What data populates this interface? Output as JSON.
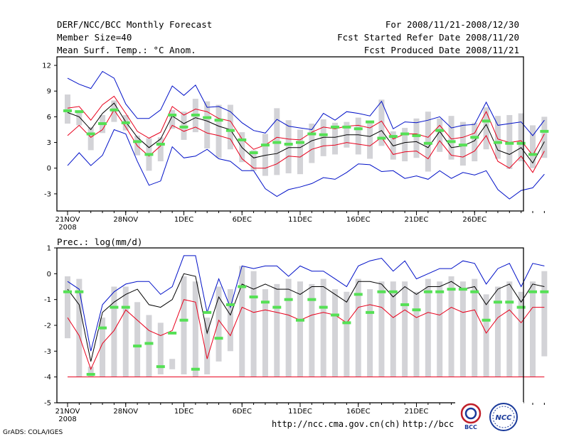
{
  "header": {
    "title": "DERF/NCC/BCC Monthly Forecast",
    "member_size": "Member Size=40",
    "variable": "Mean Surf. Temp.: °C Anom.",
    "period": "For 2008/11/21-2008/12/30",
    "started": "Fcst Started Refer Date 2008/11/20",
    "produced": "Fcst Produced Date 2008/11/21"
  },
  "footer": {
    "grads": "GrADS: COLA/IGES",
    "link1": "http://ncc.cma.gov.cn(ch)",
    "link2": "http://bcc.",
    "logo_text1": "BCC",
    "logo_text2": "NCC"
  },
  "colors": {
    "box": "#d3d3d7",
    "median": "#55e055",
    "mean": "#000000",
    "spread": "#e8001c",
    "extreme": "#0010c8"
  },
  "chart_data": [
    {
      "type": "box",
      "title": "Mean Surf. Temp.: °C Anom.",
      "ylim": [
        -5,
        13
      ],
      "yticks": [
        12,
        9,
        6,
        3,
        0,
        -3
      ],
      "xticks": [
        {
          "day": 0,
          "label": "21NOV"
        },
        {
          "day": 5,
          "label": "28NOV"
        },
        {
          "day": 10,
          "label": "1DEC"
        },
        {
          "day": 15,
          "label": "6DEC"
        },
        {
          "day": 20,
          "label": "11DEC"
        },
        {
          "day": 25,
          "label": "16DEC"
        },
        {
          "day": 30,
          "label": "21DEC"
        },
        {
          "day": 35,
          "label": "26DEC"
        }
      ],
      "year_label": "2008",
      "days": 40,
      "series": [
        {
          "name": "max",
          "values": [
            10.5,
            9.8,
            9.3,
            11.3,
            10.5,
            7.5,
            5.8,
            5.8,
            6.8,
            9.6,
            8.5,
            9.7,
            7.1,
            7.2,
            6.6,
            5.3,
            4.4,
            4.1,
            5.7,
            4.9,
            4.7,
            4.5,
            6.4,
            5.6,
            6.6,
            6.4,
            6.1,
            7.8,
            4.6,
            5.4,
            5.3,
            5.6,
            6.0,
            4.7,
            5.0,
            5.1,
            7.7,
            5.0,
            5.2,
            5.4,
            3.8,
            5.6
          ]
        },
        {
          "name": "mean_plus_sd",
          "values": [
            7.0,
            7.2,
            5.6,
            7.4,
            8.4,
            6.4,
            4.3,
            3.5,
            4.2,
            7.2,
            6.2,
            6.9,
            6.6,
            5.8,
            5.5,
            3.4,
            2.2,
            2.7,
            3.6,
            3.4,
            3.3,
            4.2,
            4.8,
            4.6,
            4.9,
            5.0,
            4.7,
            5.5,
            3.4,
            4.0,
            4.0,
            3.6,
            5.0,
            3.4,
            3.6,
            4.1,
            6.6,
            3.4,
            3.0,
            3.2,
            1.5,
            4.0
          ]
        },
        {
          "name": "mean",
          "values": [
            6.5,
            6.0,
            4.5,
            6.4,
            7.6,
            5.4,
            3.6,
            2.4,
            3.4,
            6.1,
            5.2,
            5.9,
            5.5,
            4.9,
            4.5,
            2.4,
            1.2,
            1.5,
            1.7,
            2.4,
            2.4,
            3.2,
            3.6,
            3.6,
            3.9,
            3.9,
            3.7,
            4.4,
            2.6,
            3.0,
            3.1,
            2.4,
            4.3,
            2.4,
            2.6,
            3.2,
            5.1,
            2.1,
            1.6,
            2.4,
            0.6,
            3.1
          ]
        },
        {
          "name": "mean_minus_sd",
          "values": [
            3.8,
            5.0,
            3.6,
            4.5,
            6.8,
            4.8,
            2.6,
            1.4,
            2.6,
            5.0,
            4.3,
            4.8,
            4.1,
            3.8,
            3.4,
            1.1,
            0.0,
            0.0,
            0.5,
            1.4,
            1.3,
            2.2,
            2.6,
            2.7,
            3.0,
            2.8,
            2.6,
            3.6,
            1.6,
            1.9,
            2.0,
            1.1,
            3.2,
            1.5,
            1.3,
            2.0,
            3.8,
            0.8,
            0.0,
            1.4,
            -0.5,
            2.0
          ]
        },
        {
          "name": "min",
          "values": [
            0.3,
            1.8,
            0.3,
            1.5,
            4.5,
            4.0,
            0.8,
            -2.0,
            -1.5,
            2.5,
            1.2,
            1.4,
            2.2,
            1.1,
            0.8,
            -0.3,
            -0.3,
            -2.4,
            -3.3,
            -2.5,
            -2.2,
            -1.8,
            -1.1,
            -1.3,
            -0.5,
            0.5,
            0.4,
            -0.4,
            -0.3,
            -1.2,
            -0.9,
            -1.3,
            -0.3,
            -1.2,
            -0.5,
            -0.8,
            -0.3,
            -2.5,
            -3.6,
            -2.6,
            -2.3,
            -0.7
          ]
        },
        {
          "name": "box_top",
          "values": [
            8.6,
            6.5,
            4.8,
            6.2,
            7.9,
            6.2,
            3.8,
            3.5,
            3.6,
            6.8,
            6.6,
            8.1,
            7.8,
            7.4,
            7.4,
            4.2,
            2.1,
            4.0,
            7.0,
            5.6,
            4.5,
            5.2,
            5.7,
            5.3,
            5.4,
            5.9,
            5.5,
            8.0,
            4.3,
            4.7,
            5.8,
            6.6,
            5.8,
            6.1,
            5.4,
            5.3,
            7.1,
            6.1,
            6.2,
            6.4,
            5.0,
            6.0
          ]
        },
        {
          "name": "box_bottom",
          "values": [
            5.2,
            5.0,
            2.1,
            4.1,
            5.4,
            4.4,
            1.5,
            -0.3,
            0.8,
            4.6,
            3.3,
            4.2,
            2.3,
            1.2,
            2.2,
            0.7,
            -0.3,
            -0.9,
            -0.8,
            -0.6,
            -0.7,
            0.6,
            1.4,
            1.6,
            2.4,
            1.6,
            1.1,
            2.6,
            1.0,
            0.8,
            1.2,
            -0.4,
            1.9,
            1.0,
            0.3,
            0.8,
            2.2,
            1.1,
            -0.1,
            0.8,
            0.0,
            1.2
          ]
        },
        {
          "name": "median",
          "values": [
            6.7,
            6.6,
            4.0,
            5.2,
            6.8,
            5.3,
            3.1,
            1.6,
            2.8,
            6.2,
            4.8,
            6.2,
            5.9,
            5.6,
            4.4,
            3.3,
            1.8,
            2.7,
            3.0,
            2.8,
            3.0,
            4.0,
            3.9,
            4.8,
            4.8,
            4.6,
            5.4,
            3.5,
            3.7,
            4.0,
            3.8,
            2.9,
            4.4,
            3.1,
            2.7,
            3.6,
            5.5,
            3.0,
            2.9,
            2.9,
            1.6,
            4.3
          ]
        }
      ]
    },
    {
      "type": "box",
      "title": "Prec.: log(mm/d)",
      "ylim": [
        -5,
        1
      ],
      "yticks": [
        1,
        0,
        -1,
        -2,
        -3,
        -4,
        -5
      ],
      "xticks": [
        {
          "day": 0,
          "label": "21NOV"
        },
        {
          "day": 5,
          "label": "28NOV"
        },
        {
          "day": 10,
          "label": "1DEC"
        },
        {
          "day": 15,
          "label": "6DEC"
        },
        {
          "day": 20,
          "label": "11DEC"
        },
        {
          "day": 25,
          "label": "16DEC"
        },
        {
          "day": 30,
          "label": "21DEC"
        },
        {
          "day": 35,
          "label": "26DEC"
        }
      ],
      "year_label": "2008",
      "days": 40,
      "floor": -4,
      "series": [
        {
          "name": "max",
          "values": [
            -0.3,
            -0.6,
            -3.0,
            -1.2,
            -0.7,
            -0.4,
            -0.3,
            -0.3,
            -0.8,
            -0.5,
            0.7,
            0.7,
            -1.5,
            -0.2,
            -1.3,
            0.3,
            0.2,
            0.3,
            0.3,
            -0.1,
            0.3,
            0.1,
            0.1,
            -0.2,
            -0.5,
            0.3,
            0.5,
            0.6,
            0.1,
            0.5,
            -0.2,
            0.0,
            0.2,
            0.2,
            0.5,
            0.4,
            -0.4,
            0.2,
            0.4,
            -0.5,
            0.4,
            0.3
          ]
        },
        {
          "name": "mean",
          "values": [
            -0.6,
            -1.2,
            -3.4,
            -1.5,
            -1.1,
            -0.8,
            -0.6,
            -1.2,
            -1.3,
            -1.0,
            0.0,
            -0.1,
            -2.3,
            -0.9,
            -1.6,
            -0.4,
            -0.6,
            -0.4,
            -0.6,
            -0.6,
            -0.8,
            -0.5,
            -0.5,
            -0.8,
            -1.1,
            -0.3,
            -0.3,
            -0.4,
            -0.9,
            -0.5,
            -0.8,
            -0.5,
            -0.5,
            -0.3,
            -0.6,
            -0.5,
            -1.2,
            -0.6,
            -0.4,
            -1.1,
            -0.4,
            -0.5
          ]
        },
        {
          "name": "mean_minus_sd",
          "values": [
            -1.7,
            -2.4,
            -3.7,
            -2.7,
            -2.2,
            -1.4,
            -1.8,
            -2.2,
            -2.4,
            -2.2,
            -1.0,
            -1.1,
            -3.3,
            -1.8,
            -2.4,
            -1.3,
            -1.5,
            -1.4,
            -1.5,
            -1.6,
            -1.8,
            -1.6,
            -1.5,
            -1.6,
            -1.9,
            -1.3,
            -1.2,
            -1.3,
            -1.7,
            -1.4,
            -1.7,
            -1.5,
            -1.6,
            -1.3,
            -1.5,
            -1.4,
            -2.3,
            -1.7,
            -1.4,
            -1.9,
            -1.3,
            -1.3
          ]
        },
        {
          "name": "box_top",
          "values": [
            -0.1,
            -0.2,
            -3.6,
            -1.7,
            -0.5,
            -0.5,
            -1.1,
            -1.6,
            -1.9,
            -3.3,
            -0.1,
            -0.3,
            -1.7,
            -0.5,
            -0.6,
            0.3,
            0.1,
            -0.6,
            -0.4,
            -0.2,
            -0.3,
            -0.4,
            -0.2,
            -0.6,
            -0.7,
            -0.2,
            -0.6,
            -0.3,
            -0.3,
            -0.3,
            -0.7,
            -0.2,
            -0.3,
            -0.1,
            -0.3,
            -0.2,
            -0.8,
            -0.5,
            -0.3,
            -0.7,
            -0.3,
            0.1
          ]
        },
        {
          "name": "box_bottom",
          "values": [
            -2.5,
            -4.0,
            -4.0,
            -4.0,
            -4.0,
            -4.0,
            -4.0,
            -4.0,
            -3.9,
            -3.7,
            -3.9,
            -4.0,
            -3.9,
            -3.4,
            -3.0,
            -4.0,
            -4.0,
            -4.0,
            -4.0,
            -4.0,
            -4.0,
            -4.0,
            -4.0,
            -4.0,
            -4.0,
            -4.0,
            -4.0,
            -4.0,
            -4.0,
            -4.0,
            -4.0,
            -4.0,
            -4.0,
            -4.0,
            -4.0,
            -4.0,
            -4.0,
            -4.0,
            -4.0,
            -4.0,
            -4.0,
            -3.2
          ]
        },
        {
          "name": "median",
          "values": [
            -0.7,
            -0.7,
            -3.9,
            -2.1,
            -1.3,
            -1.3,
            -2.8,
            -2.7,
            -3.6,
            -2.3,
            -1.8,
            -3.7,
            -1.5,
            -2.5,
            -1.2,
            -0.5,
            -0.9,
            -1.1,
            -1.3,
            -1.0,
            -1.8,
            -1.0,
            -1.3,
            -1.6,
            -1.9,
            -0.8,
            -1.5,
            -0.7,
            -0.7,
            -1.2,
            -1.4,
            -0.7,
            -0.7,
            -0.6,
            -0.6,
            -0.7,
            -1.8,
            -1.1,
            -1.1,
            -1.3,
            -0.7,
            -0.7
          ]
        }
      ]
    }
  ]
}
